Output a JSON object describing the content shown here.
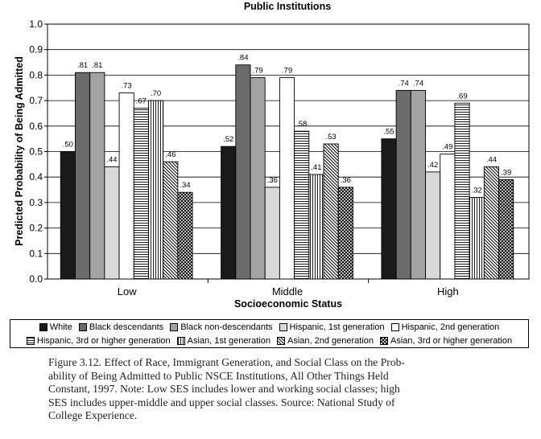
{
  "chart_data": {
    "type": "bar",
    "title": "Public Institutions",
    "xlabel": "Socioeconomic Status",
    "ylabel": "Predicted Probability of Being Admitted",
    "ylim": [
      0,
      1.0
    ],
    "yticks": [
      "0.0",
      "0.1",
      "0.2",
      "0.3",
      "0.4",
      "0.5",
      "0.6",
      "0.7",
      "0.8",
      "0.9",
      "1.0"
    ],
    "categories": [
      "Low",
      "Middle",
      "High"
    ],
    "legend_position": "bottom",
    "series": [
      {
        "name": "White",
        "values": [
          0.5,
          0.52,
          0.55
        ],
        "labels": [
          ".50",
          ".52",
          ".55"
        ],
        "fill": "#1a1a1a",
        "pattern": "solid"
      },
      {
        "name": "Black descendants",
        "values": [
          0.81,
          0.84,
          0.74
        ],
        "labels": [
          ".81",
          ".84",
          ".74"
        ],
        "fill": "#6b6b6b",
        "pattern": "solid"
      },
      {
        "name": "Black non-descendants",
        "values": [
          0.81,
          0.79,
          0.74
        ],
        "labels": [
          ".81",
          ".79",
          ".74"
        ],
        "fill": "#a3a3a3",
        "pattern": "solid"
      },
      {
        "name": "Hispanic, 1st generation",
        "values": [
          0.44,
          0.36,
          0.42
        ],
        "labels": [
          ".44",
          ".36",
          ".42"
        ],
        "fill": "#d9d9d9",
        "pattern": "solid"
      },
      {
        "name": "Hispanic, 2nd generation",
        "values": [
          0.73,
          0.79,
          0.49
        ],
        "labels": [
          ".73",
          ".79",
          ".49"
        ],
        "fill": "#ffffff",
        "pattern": "solid"
      },
      {
        "name": "Hispanic, 3rd or higher generation",
        "values": [
          0.67,
          0.58,
          0.69
        ],
        "labels": [
          ".67",
          ".58",
          ".69"
        ],
        "fill": "#ffffff",
        "pattern": "hlines"
      },
      {
        "name": "Asian, 1st generation",
        "values": [
          0.7,
          0.41,
          0.32
        ],
        "labels": [
          ".70",
          ".41",
          ".32"
        ],
        "fill": "#ffffff",
        "pattern": "vlines"
      },
      {
        "name": "Asian, 2nd generation",
        "values": [
          0.46,
          0.53,
          0.44
        ],
        "labels": [
          ".46",
          ".53",
          ".44"
        ],
        "fill": "#ffffff",
        "pattern": "diag"
      },
      {
        "name": "Asian, 3rd or higher generation",
        "values": [
          0.34,
          0.36,
          0.39
        ],
        "labels": [
          ".34",
          ".36",
          ".39"
        ],
        "fill": "#ffffff",
        "pattern": "cross"
      }
    ]
  },
  "legend": {
    "row1": [
      "White",
      "Black descendants",
      "Black non-descendants",
      "Hispanic, 1st generation",
      "Hispanic, 2nd generation"
    ],
    "row2": [
      "Hispanic, 3rd or higher generation",
      "Asian, 1st generation",
      "Asian, 2nd generation",
      "Asian, 3rd or higher generation"
    ]
  },
  "caption": {
    "lines": [
      "Figure 3.12. Effect of Race, Immigrant Generation, and Social Class on the Prob-",
      "ability of Being Admitted to Public NSCE Institutions, All Other Things Held",
      "Constant, 1997. Note: Low SES includes lower and working social classes; high",
      "SES includes upper-middle and upper social classes. Source: National Study of",
      "College Experience."
    ]
  }
}
